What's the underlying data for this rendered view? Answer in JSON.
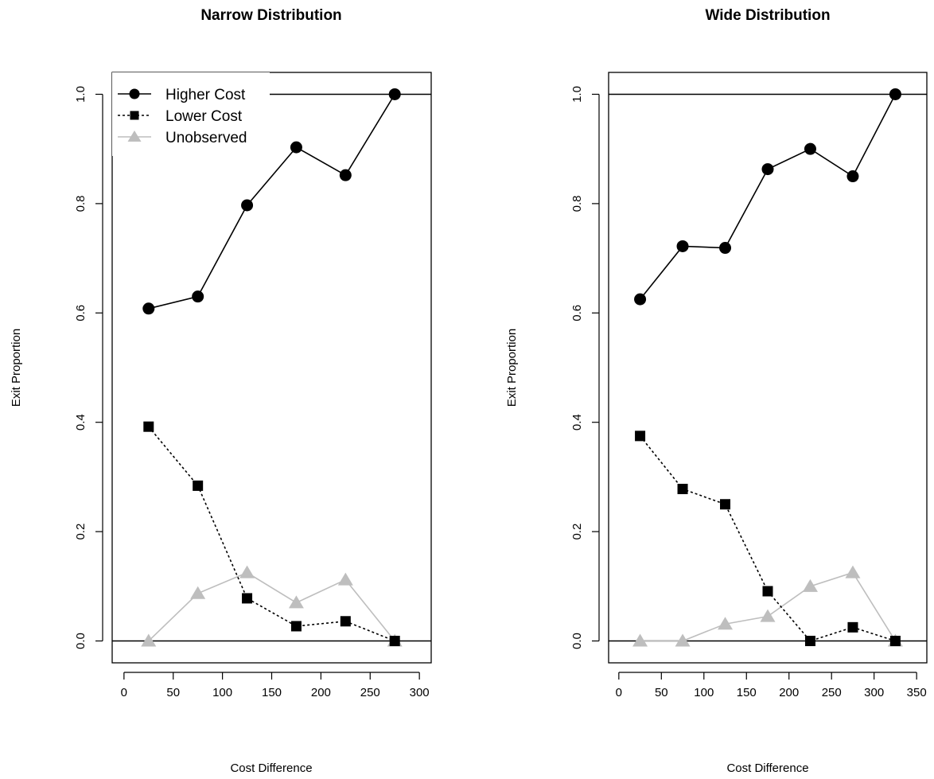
{
  "chart_data": [
    {
      "type": "line",
      "title": "Narrow Distribution",
      "xlabel": "Cost Difference",
      "ylabel": "Exit Proportion",
      "xlim": [
        -12,
        312
      ],
      "ylim": [
        -0.04,
        1.04
      ],
      "xticks": [
        0,
        50,
        100,
        150,
        200,
        250,
        300
      ],
      "yticks": [
        0.0,
        0.2,
        0.4,
        0.6,
        0.8,
        1.0
      ],
      "hlines": [
        0,
        1
      ],
      "x": [
        25,
        75,
        125,
        175,
        225,
        275
      ],
      "series": [
        {
          "name": "Higher Cost",
          "marker": "circle",
          "line": "solid",
          "color": "#000000",
          "values": [
            0.608,
            0.63,
            0.797,
            0.903,
            0.852,
            1.0
          ]
        },
        {
          "name": "Lower Cost",
          "marker": "square",
          "line": "dotted",
          "color": "#000000",
          "values": [
            0.392,
            0.284,
            0.078,
            0.027,
            0.036,
            0.0
          ]
        },
        {
          "name": "Unobserved",
          "marker": "triangle",
          "line": "solid",
          "color": "#bebebe",
          "values": [
            0.0,
            0.087,
            0.125,
            0.07,
            0.112,
            0.0
          ]
        }
      ],
      "legend": "top-left"
    },
    {
      "type": "line",
      "title": "Wide Distribution",
      "xlabel": "Cost Difference",
      "ylabel": "Exit Proportion",
      "xlim": [
        -12,
        362
      ],
      "ylim": [
        -0.04,
        1.04
      ],
      "xticks": [
        0,
        50,
        100,
        150,
        200,
        250,
        300,
        350
      ],
      "yticks": [
        0.0,
        0.2,
        0.4,
        0.6,
        0.8,
        1.0
      ],
      "hlines": [
        0,
        1
      ],
      "x": [
        25,
        75,
        125,
        175,
        225,
        275,
        325
      ],
      "series": [
        {
          "name": "Higher Cost",
          "marker": "circle",
          "line": "solid",
          "color": "#000000",
          "values": [
            0.625,
            0.722,
            0.719,
            0.863,
            0.9,
            0.85,
            1.0
          ]
        },
        {
          "name": "Lower Cost",
          "marker": "square",
          "line": "dotted",
          "color": "#000000",
          "values": [
            0.375,
            0.278,
            0.25,
            0.091,
            0.0,
            0.025,
            0.0
          ]
        },
        {
          "name": "Unobserved",
          "marker": "triangle",
          "line": "solid",
          "color": "#bebebe",
          "values": [
            0.0,
            0.0,
            0.031,
            0.045,
            0.1,
            0.125,
            0.0
          ]
        }
      ]
    }
  ]
}
